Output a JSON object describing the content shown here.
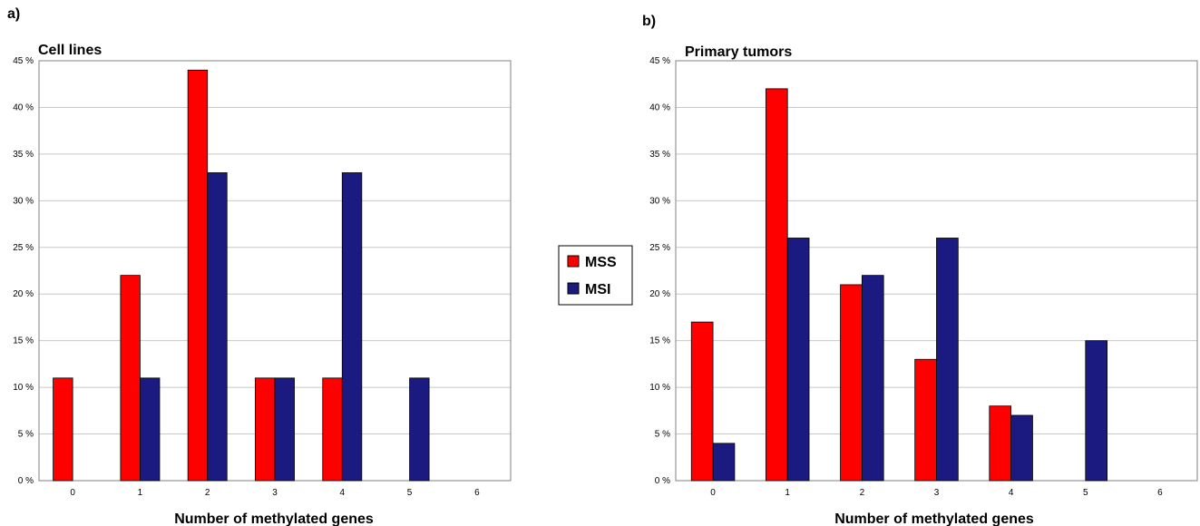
{
  "legend": {
    "items": [
      {
        "label": "MSS",
        "color": "#ff0000"
      },
      {
        "label": "MSI",
        "color": "#1a1a80"
      }
    ]
  },
  "chart_data": [
    {
      "panel": "a)",
      "type": "bar",
      "title": "Cell lines",
      "xlabel": "Number of methylated genes",
      "ylabel": "",
      "categories": [
        "0",
        "1",
        "2",
        "3",
        "4",
        "5",
        "6"
      ],
      "ylim": [
        0,
        45
      ],
      "yticks": [
        "0 %",
        "5 %",
        "10 %",
        "15 %",
        "20 %",
        "25 %",
        "30 %",
        "35 %",
        "40 %",
        "45 %"
      ],
      "grid": true,
      "series": [
        {
          "name": "MSS",
          "color": "#ff0000",
          "values": [
            11,
            22,
            44,
            11,
            11,
            0,
            0
          ]
        },
        {
          "name": "MSI",
          "color": "#1a1a80",
          "values": [
            0,
            11,
            33,
            11,
            33,
            11,
            0
          ]
        }
      ]
    },
    {
      "panel": "b)",
      "type": "bar",
      "title": "Primary tumors",
      "xlabel": "Number of methylated genes",
      "ylabel": "",
      "categories": [
        "0",
        "1",
        "2",
        "3",
        "4",
        "5",
        "6"
      ],
      "ylim": [
        0,
        45
      ],
      "yticks": [
        "0 %",
        "5 %",
        "10 %",
        "15 %",
        "20 %",
        "25 %",
        "30 %",
        "35 %",
        "40 %",
        "45 %"
      ],
      "grid": true,
      "series": [
        {
          "name": "MSS",
          "color": "#ff0000",
          "values": [
            17,
            42,
            21,
            13,
            8,
            0,
            0
          ]
        },
        {
          "name": "MSI",
          "color": "#1a1a80",
          "values": [
            4,
            26,
            22,
            26,
            7,
            15,
            0
          ]
        }
      ]
    }
  ]
}
